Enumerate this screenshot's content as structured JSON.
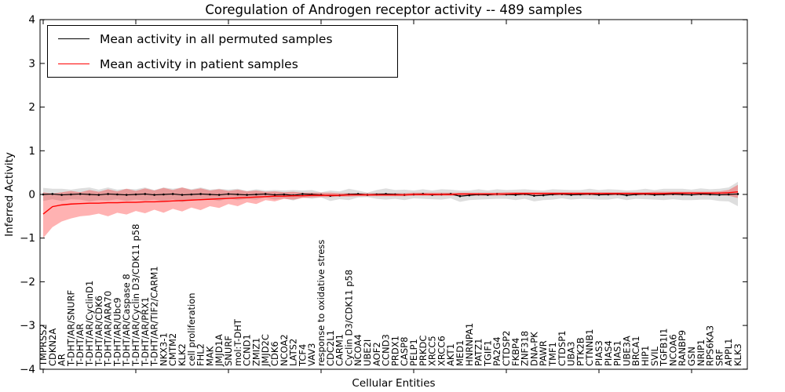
{
  "chart": {
    "title": "Coregulation of Androgen receptor activity -- 489 samples",
    "ylabel": "Inferred Activity",
    "xlabel": "Cellular Entities"
  },
  "legend": {
    "items": [
      {
        "label": "Mean activity in all permuted samples",
        "color": "#000000"
      },
      {
        "label": "Mean activity in patient samples",
        "color": "#ff0000"
      }
    ],
    "position": "upper left"
  },
  "colors": {
    "permuted_line": "#000000",
    "patient_line": "#ff0000",
    "permuted_band": "#000000",
    "patient_band": "#ff0000",
    "frame": "#000000",
    "background": "#ffffff"
  },
  "y_ticks": [
    "4",
    "3",
    "2",
    "1",
    "0",
    "−1",
    "−2",
    "−3",
    "−4"
  ],
  "y_tick_values": [
    4,
    3,
    2,
    1,
    0,
    -1,
    -2,
    -3,
    -4
  ],
  "chart_data": {
    "type": "line",
    "title": "Coregulation of Androgen receptor activity -- 489 samples",
    "xlabel": "Cellular Entities",
    "ylabel": "Inferred Activity",
    "ylim": [
      -4,
      4
    ],
    "grid": false,
    "legend_position": "upper left",
    "categories": [
      "TMPRSS2",
      "CDKN2A",
      "AR",
      "T-DHT/AR/SNURF",
      "T-DHT/AR",
      "T-DHT/AR/CyclinD1",
      "T-DHT/AR/CDK6",
      "T-DHT/AR/ARA70",
      "T-DHT/AR/Ubc9",
      "T-DHT/AR/Caspase 8",
      "T-DHT/AR/Cyclin D3/CDK11 p58",
      "T-DHT/AR/PRX1",
      "T-DHT/AR/TIF2/CARM1",
      "NKX3-1",
      "CMTM2",
      "KLK2",
      "cell proliferation",
      "FHL2",
      "MAK",
      "JMJD1A",
      "SNURF",
      "mol:T-DHT",
      "CCND1",
      "ZMIZ1",
      "JMJD2C",
      "CDK6",
      "NCOA2",
      "LATS2",
      "TCF4",
      "VAV3",
      "response to oxidative stress",
      "CDC2L1",
      "CARM1",
      "Cyclin D3/CDK11 p58",
      "NCOA4",
      "UBE2I",
      "AOF2",
      "CCND3",
      "PRDX1",
      "CASP8",
      "PELP1",
      "PRKDC",
      "XRCC5",
      "XRCC6",
      "AKT1",
      "MED1",
      "HNRNPA1",
      "PATZ1",
      "TGIF1",
      "PA2G4",
      "CTDSP2",
      "FKBP4",
      "ZNF318",
      "DNA-PK",
      "PAWR",
      "TMF1",
      "CTDSP1",
      "UBA3",
      "PTK2B",
      "CTNNB1",
      "PIAS3",
      "PIAS4",
      "PIAS1",
      "UBE3A",
      "BRCA1",
      "HIP1",
      "SVIL",
      "TGFB1I1",
      "NCOA6",
      "RANBP9",
      "GSN",
      "NRIP1",
      "RPS6KA3",
      "SRF",
      "APPL1",
      "KLK3"
    ],
    "series": [
      {
        "name": "Mean activity in all permuted samples",
        "color": "#000000",
        "values": [
          0.0,
          0.01,
          -0.01,
          0.0,
          0.01,
          0.0,
          -0.01,
          0.01,
          0.0,
          -0.01,
          0.0,
          0.01,
          -0.01,
          0.0,
          0.01,
          -0.01,
          0.0,
          0.01,
          0.0,
          -0.01,
          0.01,
          0.0,
          -0.01,
          0.0,
          0.01,
          -0.01,
          0.0,
          -0.02,
          0.01,
          0.0,
          -0.01,
          -0.03,
          -0.02,
          0.0,
          0.01,
          -0.01,
          0.0,
          0.01,
          0.0,
          -0.01,
          0.0,
          0.01,
          -0.01,
          0.0,
          0.01,
          -0.04,
          -0.02,
          0.0,
          -0.01,
          0.01,
          0.0,
          -0.01,
          0.01,
          -0.03,
          -0.02,
          0.0,
          0.01,
          -0.01,
          0.0,
          0.01,
          -0.01,
          0.0,
          0.01,
          -0.02,
          0.0,
          0.01,
          -0.01,
          0.0,
          0.01,
          0.0,
          -0.01,
          0.01,
          0.0,
          -0.01,
          0.0,
          0.01
        ],
        "band_halfwidth": [
          0.15,
          0.12,
          0.14,
          0.11,
          0.13,
          0.16,
          0.12,
          0.15,
          0.11,
          0.14,
          0.12,
          0.15,
          0.11,
          0.16,
          0.12,
          0.17,
          0.12,
          0.15,
          0.11,
          0.14,
          0.1,
          0.13,
          0.09,
          0.12,
          0.08,
          0.11,
          0.09,
          0.12,
          0.08,
          0.1,
          0.06,
          0.12,
          0.09,
          0.13,
          0.08,
          0.05,
          0.1,
          0.13,
          0.1,
          0.12,
          0.09,
          0.11,
          0.1,
          0.12,
          0.1,
          0.13,
          0.11,
          0.12,
          0.1,
          0.11,
          0.1,
          0.12,
          0.11,
          0.13,
          0.11,
          0.12,
          0.1,
          0.11,
          0.1,
          0.12,
          0.11,
          0.12,
          0.1,
          0.11,
          0.1,
          0.12,
          0.11,
          0.13,
          0.12,
          0.13,
          0.12,
          0.13,
          0.12,
          0.14,
          0.16,
          0.28
        ],
        "band_opacity": 0.13,
        "markers": true
      },
      {
        "name": "Mean activity in patient samples",
        "color": "#ff0000",
        "values": [
          -0.45,
          -0.28,
          -0.24,
          -0.22,
          -0.21,
          -0.2,
          -0.2,
          -0.19,
          -0.19,
          -0.18,
          -0.18,
          -0.17,
          -0.17,
          -0.16,
          -0.15,
          -0.14,
          -0.13,
          -0.12,
          -0.11,
          -0.1,
          -0.09,
          -0.08,
          -0.07,
          -0.06,
          -0.05,
          -0.04,
          -0.04,
          -0.03,
          -0.03,
          -0.02,
          -0.02,
          -0.02,
          -0.02,
          -0.01,
          -0.01,
          -0.01,
          -0.01,
          -0.01,
          -0.01,
          -0.01,
          0.0,
          0.0,
          0.0,
          0.0,
          0.0,
          0.01,
          0.01,
          0.01,
          0.01,
          0.01,
          0.01,
          0.02,
          0.02,
          0.02,
          0.02,
          0.02,
          0.02,
          0.02,
          0.02,
          0.02,
          0.02,
          0.02,
          0.02,
          0.02,
          0.02,
          0.02,
          0.02,
          0.02,
          0.03,
          0.03,
          0.03,
          0.03,
          0.03,
          0.03,
          0.04,
          0.06
        ],
        "band_lower": [
          -1.0,
          -0.75,
          -0.62,
          -0.55,
          -0.5,
          -0.48,
          -0.44,
          -0.5,
          -0.42,
          -0.46,
          -0.38,
          -0.43,
          -0.35,
          -0.42,
          -0.33,
          -0.39,
          -0.3,
          -0.36,
          -0.27,
          -0.31,
          -0.22,
          -0.27,
          -0.18,
          -0.22,
          -0.13,
          -0.16,
          -0.1,
          -0.12,
          -0.08,
          -0.07,
          -0.06,
          -0.06,
          -0.05,
          -0.05,
          -0.04,
          -0.04,
          -0.04,
          -0.04,
          -0.04,
          -0.04,
          -0.03,
          -0.03,
          -0.03,
          -0.03,
          -0.03,
          -0.03,
          -0.03,
          -0.03,
          -0.03,
          -0.03,
          -0.02,
          -0.02,
          -0.02,
          -0.02,
          -0.02,
          -0.02,
          -0.02,
          -0.02,
          -0.02,
          -0.02,
          -0.02,
          -0.02,
          -0.02,
          -0.02,
          -0.02,
          -0.02,
          -0.02,
          -0.02,
          -0.02,
          -0.02,
          -0.02,
          -0.02,
          -0.02,
          -0.02,
          -0.03,
          -0.08
        ],
        "band_upper": [
          0.05,
          0.02,
          0.05,
          0.08,
          0.05,
          0.1,
          0.06,
          0.12,
          0.07,
          0.13,
          0.08,
          0.14,
          0.09,
          0.15,
          0.1,
          0.16,
          0.1,
          0.14,
          0.09,
          0.12,
          0.08,
          0.11,
          0.07,
          0.09,
          0.06,
          0.07,
          0.05,
          0.06,
          0.04,
          0.04,
          0.04,
          0.04,
          0.03,
          0.03,
          0.03,
          0.03,
          0.03,
          0.03,
          0.03,
          0.03,
          0.04,
          0.04,
          0.04,
          0.04,
          0.04,
          0.04,
          0.04,
          0.04,
          0.04,
          0.04,
          0.05,
          0.05,
          0.05,
          0.05,
          0.05,
          0.05,
          0.05,
          0.05,
          0.05,
          0.05,
          0.05,
          0.05,
          0.05,
          0.05,
          0.05,
          0.05,
          0.06,
          0.06,
          0.06,
          0.06,
          0.06,
          0.06,
          0.06,
          0.07,
          0.1,
          0.22
        ],
        "band_opacity": 0.3,
        "markers": false
      }
    ]
  }
}
